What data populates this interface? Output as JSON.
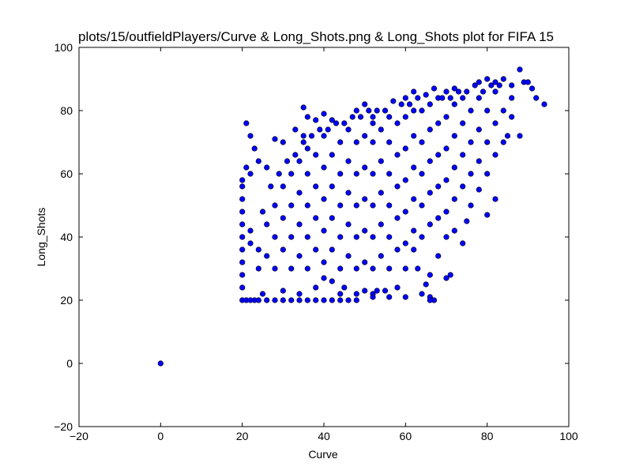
{
  "chart_data": {
    "type": "scatter",
    "title": "plots/15/outfieldPlayers/Curve & Long_Shots.png & Long_Shots plot for FIFA 15",
    "xlabel": "Curve",
    "ylabel": "Long_Shots",
    "xlim": [
      -20,
      100
    ],
    "ylim": [
      -20,
      100
    ],
    "xticks": [
      "−20",
      "0",
      "20",
      "40",
      "60",
      "80",
      "100"
    ],
    "yticks": [
      "−20",
      "0",
      "20",
      "40",
      "60",
      "80",
      "100"
    ],
    "xtick_values": [
      -20,
      0,
      20,
      40,
      60,
      80,
      100
    ],
    "ytick_values": [
      -20,
      0,
      20,
      40,
      60,
      80,
      100
    ],
    "grid": false,
    "colors": {
      "marker_fill": "#0000ff",
      "marker_edge": "#000000"
    },
    "points": [
      [
        0,
        0
      ],
      [
        21,
        76
      ],
      [
        22,
        72
      ],
      [
        23,
        68
      ],
      [
        28,
        71
      ],
      [
        30,
        70
      ],
      [
        33,
        74
      ],
      [
        35,
        72
      ],
      [
        36,
        78
      ],
      [
        35,
        81
      ],
      [
        38,
        77
      ],
      [
        40,
        79
      ],
      [
        42,
        77
      ],
      [
        47,
        78
      ],
      [
        48,
        80
      ],
      [
        50,
        82
      ],
      [
        52,
        78
      ],
      [
        55,
        80
      ],
      [
        57,
        83
      ],
      [
        60,
        84
      ],
      [
        62,
        86
      ],
      [
        65,
        85
      ],
      [
        67,
        87
      ],
      [
        70,
        86
      ],
      [
        72,
        87
      ],
      [
        75,
        86
      ],
      [
        77,
        88
      ],
      [
        78,
        89
      ],
      [
        80,
        90
      ],
      [
        82,
        89
      ],
      [
        84,
        90
      ],
      [
        86,
        88
      ],
      [
        88,
        93
      ],
      [
        89,
        89
      ],
      [
        90,
        89
      ],
      [
        91,
        87
      ],
      [
        92,
        84
      ],
      [
        94,
        82
      ],
      [
        85,
        72
      ],
      [
        88,
        72
      ],
      [
        82,
        52
      ],
      [
        80,
        47
      ],
      [
        78,
        55
      ],
      [
        76,
        50
      ],
      [
        75,
        45
      ],
      [
        74,
        38
      ],
      [
        72,
        42
      ],
      [
        70,
        40
      ],
      [
        71,
        28
      ],
      [
        70,
        27
      ],
      [
        68,
        34
      ],
      [
        66,
        28
      ],
      [
        65,
        25
      ],
      [
        66,
        21
      ],
      [
        67,
        20
      ],
      [
        66,
        20
      ],
      [
        64,
        22
      ],
      [
        63,
        30
      ],
      [
        62,
        36
      ],
      [
        60,
        30
      ],
      [
        58,
        24
      ],
      [
        55,
        23
      ],
      [
        53,
        23
      ],
      [
        52,
        22
      ],
      [
        50,
        23
      ],
      [
        48,
        22
      ],
      [
        45,
        24
      ],
      [
        44,
        22
      ],
      [
        42,
        26
      ],
      [
        40,
        27
      ],
      [
        38,
        24
      ],
      [
        34,
        22
      ],
      [
        30,
        23
      ],
      [
        25,
        22
      ],
      [
        20,
        20
      ],
      [
        21,
        20
      ],
      [
        22,
        20
      ],
      [
        23,
        20
      ],
      [
        24,
        20
      ],
      [
        26,
        20
      ],
      [
        28,
        20
      ],
      [
        30,
        20
      ],
      [
        32,
        20
      ],
      [
        34,
        20
      ],
      [
        36,
        20
      ],
      [
        38,
        20
      ],
      [
        40,
        20
      ],
      [
        42,
        20
      ],
      [
        44,
        20
      ],
      [
        46,
        20
      ],
      [
        48,
        20
      ],
      [
        52,
        21
      ],
      [
        56,
        21
      ],
      [
        60,
        21
      ],
      [
        20,
        24
      ],
      [
        20,
        28
      ],
      [
        20,
        32
      ],
      [
        20,
        36
      ],
      [
        20,
        40
      ],
      [
        20,
        44
      ],
      [
        20,
        48
      ],
      [
        20,
        52
      ],
      [
        20,
        56
      ],
      [
        20,
        58
      ],
      [
        21,
        62
      ],
      [
        22,
        60
      ],
      [
        24,
        64
      ],
      [
        26,
        62
      ],
      [
        22,
        38
      ],
      [
        22,
        42
      ],
      [
        24,
        30
      ],
      [
        24,
        36
      ],
      [
        26,
        34
      ],
      [
        26,
        44
      ],
      [
        28,
        30
      ],
      [
        28,
        40
      ],
      [
        28,
        50
      ],
      [
        30,
        36
      ],
      [
        30,
        46
      ],
      [
        30,
        56
      ],
      [
        32,
        30
      ],
      [
        32,
        40
      ],
      [
        32,
        50
      ],
      [
        32,
        60
      ],
      [
        34,
        34
      ],
      [
        34,
        44
      ],
      [
        34,
        54
      ],
      [
        34,
        64
      ],
      [
        36,
        30
      ],
      [
        36,
        40
      ],
      [
        36,
        50
      ],
      [
        36,
        60
      ],
      [
        36,
        68
      ],
      [
        38,
        36
      ],
      [
        38,
        46
      ],
      [
        38,
        56
      ],
      [
        38,
        66
      ],
      [
        40,
        32
      ],
      [
        40,
        42
      ],
      [
        40,
        52
      ],
      [
        40,
        62
      ],
      [
        40,
        72
      ],
      [
        42,
        36
      ],
      [
        42,
        46
      ],
      [
        42,
        56
      ],
      [
        42,
        66
      ],
      [
        44,
        30
      ],
      [
        44,
        40
      ],
      [
        44,
        50
      ],
      [
        44,
        60
      ],
      [
        44,
        70
      ],
      [
        46,
        34
      ],
      [
        46,
        44
      ],
      [
        46,
        54
      ],
      [
        46,
        64
      ],
      [
        46,
        74
      ],
      [
        48,
        30
      ],
      [
        48,
        40
      ],
      [
        48,
        50
      ],
      [
        48,
        60
      ],
      [
        48,
        70
      ],
      [
        50,
        32
      ],
      [
        50,
        42
      ],
      [
        50,
        52
      ],
      [
        50,
        62
      ],
      [
        50,
        72
      ],
      [
        52,
        30
      ],
      [
        52,
        40
      ],
      [
        52,
        50
      ],
      [
        52,
        60
      ],
      [
        52,
        70
      ],
      [
        52,
        76
      ],
      [
        54,
        34
      ],
      [
        54,
        44
      ],
      [
        54,
        54
      ],
      [
        54,
        64
      ],
      [
        54,
        74
      ],
      [
        56,
        30
      ],
      [
        56,
        40
      ],
      [
        56,
        50
      ],
      [
        56,
        60
      ],
      [
        56,
        70
      ],
      [
        56,
        78
      ],
      [
        58,
        36
      ],
      [
        58,
        46
      ],
      [
        58,
        56
      ],
      [
        58,
        66
      ],
      [
        58,
        76
      ],
      [
        60,
        38
      ],
      [
        60,
        48
      ],
      [
        60,
        58
      ],
      [
        60,
        68
      ],
      [
        60,
        78
      ],
      [
        62,
        42
      ],
      [
        62,
        52
      ],
      [
        62,
        62
      ],
      [
        62,
        72
      ],
      [
        62,
        80
      ],
      [
        64,
        40
      ],
      [
        64,
        50
      ],
      [
        64,
        60
      ],
      [
        64,
        70
      ],
      [
        64,
        80
      ],
      [
        66,
        44
      ],
      [
        66,
        54
      ],
      [
        66,
        64
      ],
      [
        66,
        74
      ],
      [
        66,
        82
      ],
      [
        68,
        46
      ],
      [
        68,
        56
      ],
      [
        68,
        66
      ],
      [
        68,
        76
      ],
      [
        68,
        84
      ],
      [
        70,
        48
      ],
      [
        70,
        58
      ],
      [
        70,
        68
      ],
      [
        70,
        78
      ],
      [
        72,
        52
      ],
      [
        72,
        62
      ],
      [
        72,
        72
      ],
      [
        72,
        82
      ],
      [
        74,
        56
      ],
      [
        74,
        66
      ],
      [
        74,
        76
      ],
      [
        74,
        84
      ],
      [
        76,
        60
      ],
      [
        76,
        70
      ],
      [
        76,
        80
      ],
      [
        78,
        64
      ],
      [
        78,
        74
      ],
      [
        78,
        84
      ],
      [
        80,
        60
      ],
      [
        80,
        70
      ],
      [
        80,
        80
      ],
      [
        82,
        66
      ],
      [
        82,
        76
      ],
      [
        82,
        86
      ],
      [
        84,
        70
      ],
      [
        84,
        80
      ],
      [
        86,
        78
      ],
      [
        86,
        84
      ],
      [
        25,
        48
      ],
      [
        27,
        56
      ],
      [
        29,
        60
      ],
      [
        31,
        64
      ],
      [
        33,
        66
      ],
      [
        35,
        70
      ],
      [
        37,
        72
      ],
      [
        39,
        74
      ],
      [
        41,
        74
      ],
      [
        43,
        76
      ],
      [
        45,
        76
      ],
      [
        49,
        78
      ],
      [
        51,
        80
      ],
      [
        53,
        80
      ],
      [
        59,
        82
      ],
      [
        61,
        82
      ],
      [
        63,
        84
      ],
      [
        69,
        84
      ],
      [
        71,
        84
      ],
      [
        73,
        86
      ],
      [
        79,
        86
      ],
      [
        81,
        88
      ],
      [
        83,
        88
      ]
    ]
  }
}
